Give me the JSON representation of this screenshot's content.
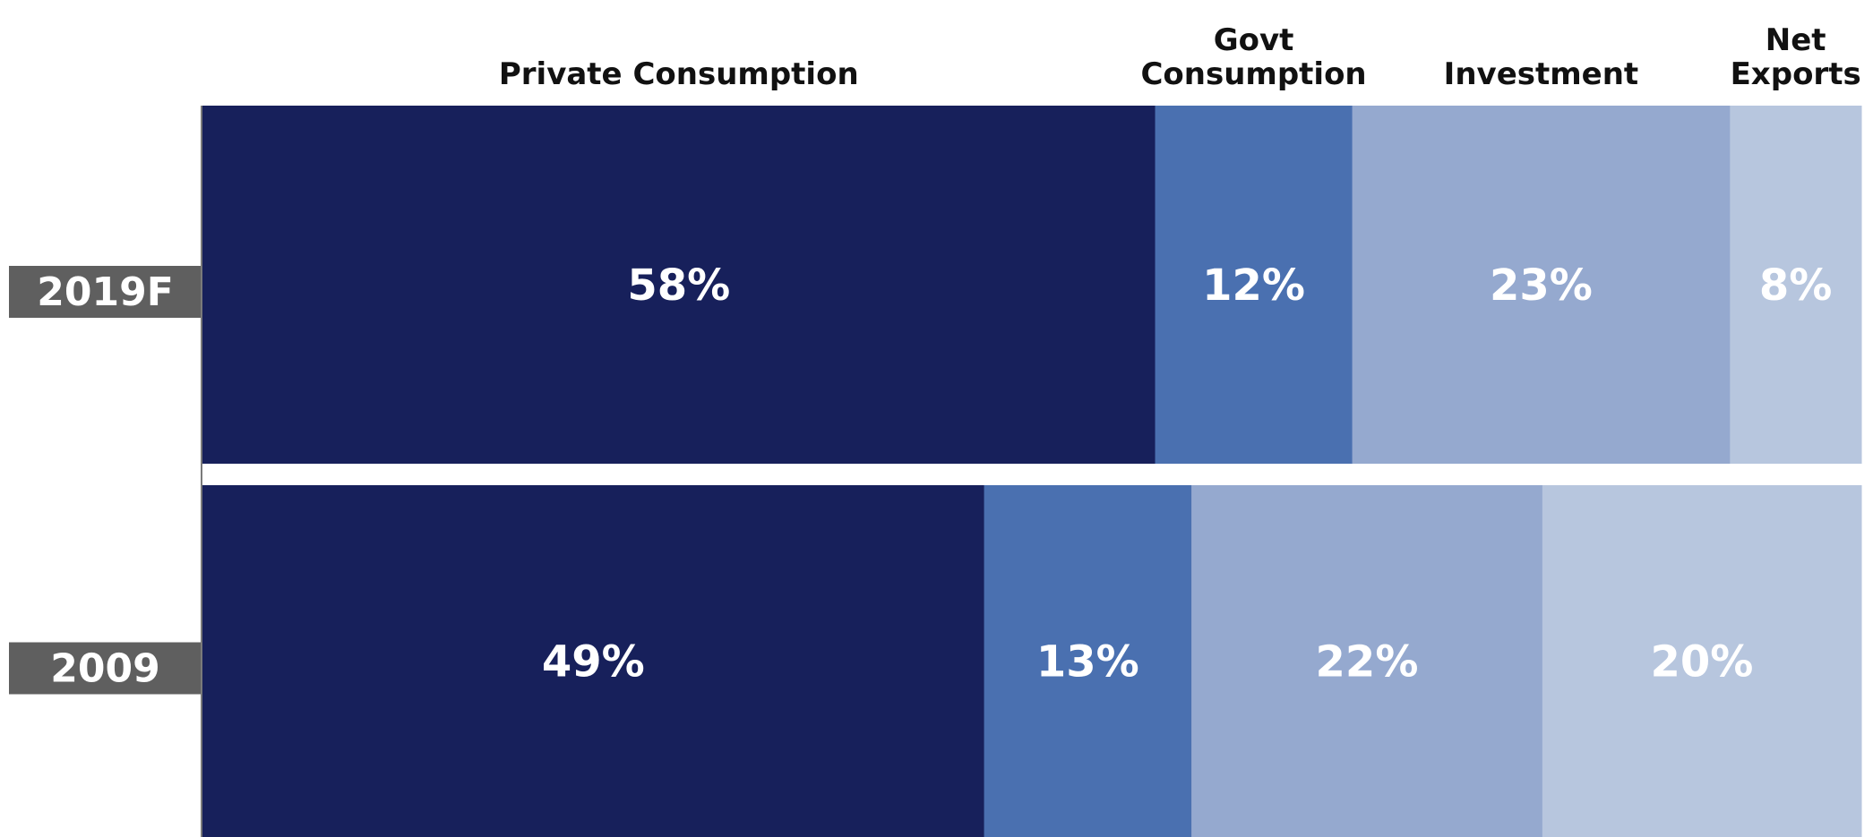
{
  "chart_data": {
    "type": "bar",
    "orientation": "horizontal",
    "stacked": true,
    "categories": [
      "2019F",
      "2009"
    ],
    "series": [
      {
        "name": "Private Consumption",
        "name_lines": [
          "Private Consumption"
        ],
        "values": [
          58,
          49
        ],
        "labels": [
          "58%",
          "49%"
        ],
        "color": "#17205b"
      },
      {
        "name": "Govt Consumption",
        "name_lines": [
          "Govt",
          "Consumption"
        ],
        "values": [
          12,
          13
        ],
        "labels": [
          "12%",
          "13%"
        ],
        "color": "#4a70b0"
      },
      {
        "name": "Investment",
        "name_lines": [
          "Investment"
        ],
        "values": [
          23,
          22
        ],
        "labels": [
          "23%",
          "22%"
        ],
        "color": "#95a9cf"
      },
      {
        "name": "Net Exports",
        "name_lines": [
          "Net",
          "Exports"
        ],
        "values": [
          8,
          20
        ],
        "labels": [
          "8%",
          "20%"
        ],
        "color": "#b7c6de"
      }
    ],
    "unit": "%",
    "legend": "top",
    "grid": false,
    "category_label_color": "#5f5f5f"
  }
}
